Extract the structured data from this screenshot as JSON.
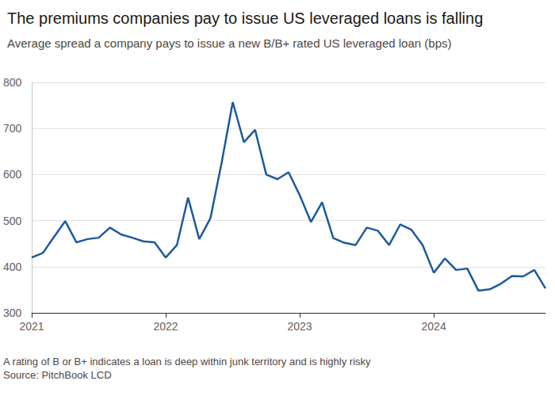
{
  "chart_data": {
    "type": "line",
    "title": "The premiums companies pay to issue US leveraged loans is falling",
    "subtitle": "Average spread a company pays to issue a new B/B+ rated US leveraged loan (bps)",
    "footnote": "A rating of B or B+ indicates a loan is deep within junk territory and is highly risky",
    "source": "Source: PitchBook LCD",
    "categories": [
      "2021",
      null,
      null,
      null,
      null,
      null,
      null,
      null,
      null,
      null,
      null,
      null,
      "2022",
      null,
      null,
      null,
      null,
      null,
      null,
      null,
      null,
      null,
      null,
      null,
      "2023",
      null,
      null,
      null,
      null,
      null,
      null,
      null,
      null,
      null,
      null,
      null,
      "2024",
      null,
      null,
      null,
      null,
      null,
      null,
      null,
      null,
      null,
      null
    ],
    "values": [
      420,
      430,
      465,
      499,
      453,
      460,
      463,
      485,
      470,
      463,
      455,
      453,
      420,
      447,
      550,
      460,
      505,
      625,
      757,
      670,
      697,
      600,
      590,
      605,
      555,
      497,
      540,
      462,
      452,
      447,
      485,
      478,
      447,
      492,
      480,
      447,
      387,
      418,
      393,
      396,
      348,
      351,
      363,
      380,
      379,
      393,
      353
    ],
    "color": "#1d5a9c",
    "ylim": [
      300,
      800
    ],
    "yticks": [
      300,
      400,
      500,
      600,
      700,
      800
    ],
    "grid": true
  }
}
